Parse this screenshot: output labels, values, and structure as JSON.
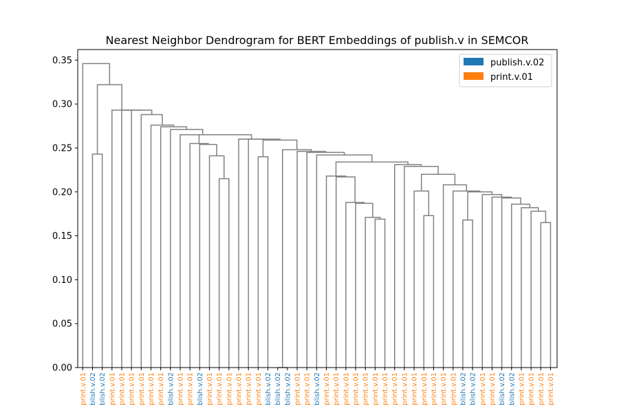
{
  "chart_data": {
    "type": "dendrogram",
    "title": "Nearest Neighbor Dendrogram for BERT Embeddings of publish.v in SEMCOR",
    "xlabel": "",
    "ylabel": "",
    "ylim": [
      0,
      0.362
    ],
    "yticks": [
      "0.00",
      "0.05",
      "0.10",
      "0.15",
      "0.20",
      "0.25",
      "0.30",
      "0.35"
    ],
    "ytick_values": [
      0,
      0.05,
      0.1,
      0.15,
      0.2,
      0.25,
      0.3,
      0.35
    ],
    "grid": false,
    "legend_position": "top-right",
    "colors": {
      "publish.v.02": "#1f77b4",
      "print.v.01": "#ff7f0e",
      "link": "#808080"
    },
    "legend": [
      {
        "label": "publish.v.02",
        "color": "#1f77b4"
      },
      {
        "label": "print.v.01",
        "color": "#ff7f0e"
      }
    ],
    "leaves": [
      {
        "label": "print.v.01",
        "class": "print.v.01"
      },
      {
        "label": "blish.v.02",
        "class": "publish.v.02"
      },
      {
        "label": "blish.v.02",
        "class": "publish.v.02"
      },
      {
        "label": "print.v.01",
        "class": "print.v.01"
      },
      {
        "label": "print.v.01",
        "class": "print.v.01"
      },
      {
        "label": "print.v.01",
        "class": "print.v.01"
      },
      {
        "label": "print.v.01",
        "class": "print.v.01"
      },
      {
        "label": "print.v.01",
        "class": "print.v.01"
      },
      {
        "label": "print.v.01",
        "class": "print.v.01"
      },
      {
        "label": "blish.v.02",
        "class": "publish.v.02"
      },
      {
        "label": "print.v.01",
        "class": "print.v.01"
      },
      {
        "label": "print.v.01",
        "class": "print.v.01"
      },
      {
        "label": "blish.v.02",
        "class": "publish.v.02"
      },
      {
        "label": "print.v.01",
        "class": "print.v.01"
      },
      {
        "label": "print.v.01",
        "class": "print.v.01"
      },
      {
        "label": "print.v.01",
        "class": "print.v.01"
      },
      {
        "label": "print.v.01",
        "class": "print.v.01"
      },
      {
        "label": "print.v.01",
        "class": "print.v.01"
      },
      {
        "label": "print.v.01",
        "class": "print.v.01"
      },
      {
        "label": "blish.v.02",
        "class": "publish.v.02"
      },
      {
        "label": "blish.v.02",
        "class": "publish.v.02"
      },
      {
        "label": "blish.v.02",
        "class": "publish.v.02"
      },
      {
        "label": "print.v.01",
        "class": "print.v.01"
      },
      {
        "label": "print.v.01",
        "class": "print.v.01"
      },
      {
        "label": "blish.v.02",
        "class": "publish.v.02"
      },
      {
        "label": "print.v.01",
        "class": "print.v.01"
      },
      {
        "label": "print.v.01",
        "class": "print.v.01"
      },
      {
        "label": "print.v.01",
        "class": "print.v.01"
      },
      {
        "label": "print.v.01",
        "class": "print.v.01"
      },
      {
        "label": "print.v.01",
        "class": "print.v.01"
      },
      {
        "label": "print.v.01",
        "class": "print.v.01"
      },
      {
        "label": "print.v.01",
        "class": "print.v.01"
      },
      {
        "label": "print.v.01",
        "class": "print.v.01"
      },
      {
        "label": "print.v.01",
        "class": "print.v.01"
      },
      {
        "label": "print.v.01",
        "class": "print.v.01"
      },
      {
        "label": "print.v.01",
        "class": "print.v.01"
      },
      {
        "label": "print.v.01",
        "class": "print.v.01"
      },
      {
        "label": "print.v.01",
        "class": "print.v.01"
      },
      {
        "label": "print.v.01",
        "class": "print.v.01"
      },
      {
        "label": "blish.v.02",
        "class": "publish.v.02"
      },
      {
        "label": "blish.v.02",
        "class": "publish.v.02"
      },
      {
        "label": "print.v.01",
        "class": "print.v.01"
      },
      {
        "label": "print.v.01",
        "class": "print.v.01"
      },
      {
        "label": "blish.v.02",
        "class": "publish.v.02"
      },
      {
        "label": "blish.v.02",
        "class": "publish.v.02"
      },
      {
        "label": "print.v.01",
        "class": "print.v.01"
      },
      {
        "label": "print.v.01",
        "class": "print.v.01"
      },
      {
        "label": "print.v.01",
        "class": "print.v.01"
      },
      {
        "label": "print.v.01",
        "class": "print.v.01"
      }
    ],
    "merges": [
      {
        "left": 47,
        "right": 48,
        "height": 0.165
      },
      {
        "left": 46,
        "right": 49,
        "height": 0.178
      },
      {
        "left": 45,
        "right": 50,
        "height": 0.182
      },
      {
        "left": 44,
        "right": 51,
        "height": 0.186
      },
      {
        "left": 43,
        "right": 52,
        "height": 0.193
      },
      {
        "left": 42,
        "right": 53,
        "height": 0.194
      },
      {
        "left": 41,
        "right": 54,
        "height": 0.197
      },
      {
        "left": 39,
        "right": 40,
        "height": 0.168
      },
      {
        "left": 56,
        "right": 55,
        "height": 0.2
      },
      {
        "left": 38,
        "right": 57,
        "height": 0.201
      },
      {
        "left": 37,
        "right": 58,
        "height": 0.208
      },
      {
        "left": 35,
        "right": 36,
        "height": 0.173
      },
      {
        "left": 34,
        "right": 60,
        "height": 0.201
      },
      {
        "left": 61,
        "right": 59,
        "height": 0.22
      },
      {
        "left": 33,
        "right": 62,
        "height": 0.229
      },
      {
        "left": 32,
        "right": 63,
        "height": 0.231
      },
      {
        "left": 30,
        "right": 31,
        "height": 0.169
      },
      {
        "left": 29,
        "right": 65,
        "height": 0.171
      },
      {
        "left": 28,
        "right": 66,
        "height": 0.187
      },
      {
        "left": 27,
        "right": 67,
        "height": 0.188
      },
      {
        "left": 26,
        "right": 68,
        "height": 0.217
      },
      {
        "left": 25,
        "right": 69,
        "height": 0.218
      },
      {
        "left": 70,
        "right": 64,
        "height": 0.234
      },
      {
        "left": 24,
        "right": 71,
        "height": 0.242
      },
      {
        "left": 23,
        "right": 72,
        "height": 0.245
      },
      {
        "left": 22,
        "right": 73,
        "height": 0.246
      },
      {
        "left": 20,
        "right": 21,
        "height": 0.0
      },
      {
        "left": 75,
        "right": 74,
        "height": 0.248
      },
      {
        "left": 18,
        "right": 19,
        "height": 0.24
      },
      {
        "left": 77,
        "right": 76,
        "height": 0.259
      },
      {
        "left": 17,
        "right": 78,
        "height": 0.26
      },
      {
        "left": 14,
        "right": 15,
        "height": 0.215
      },
      {
        "left": 13,
        "right": 80,
        "height": 0.241
      },
      {
        "left": 12,
        "right": 81,
        "height": 0.254
      },
      {
        "left": 11,
        "right": 82,
        "height": 0.255
      },
      {
        "left": 16,
        "right": 79,
        "height": 0.26
      },
      {
        "left": 83,
        "right": 84,
        "height": 0.265
      },
      {
        "left": 10,
        "right": 85,
        "height": 0.265
      },
      {
        "left": 9,
        "right": 86,
        "height": 0.271
      },
      {
        "left": 8,
        "right": 87,
        "height": 0.274
      },
      {
        "left": 7,
        "right": 88,
        "height": 0.276
      },
      {
        "left": 6,
        "right": 89,
        "height": 0.288
      },
      {
        "left": 5,
        "right": 90,
        "height": 0.293
      },
      {
        "left": 4,
        "right": 91,
        "height": 0.293
      },
      {
        "left": 1,
        "right": 2,
        "height": 0.243
      },
      {
        "left": 3,
        "right": 92,
        "height": 0.293
      },
      {
        "left": 93,
        "right": 94,
        "height": 0.322
      },
      {
        "left": 0,
        "right": 95,
        "height": 0.346
      }
    ]
  }
}
